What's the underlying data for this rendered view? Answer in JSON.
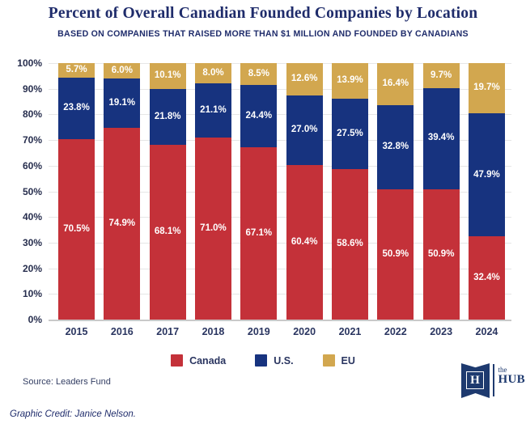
{
  "title": "Percent of Overall Canadian Founded Companies by Location",
  "subtitle": "BASED ON COMPANIES THAT RAISED MORE THAN $1 MILLION AND FOUNDED BY CANADIANS",
  "source": "Source: Leaders Fund",
  "credit": "Graphic Credit: Janice Nelson.",
  "logo": {
    "letter": "H",
    "the": "the",
    "hub": "HUB"
  },
  "colors": {
    "canada": "#C43139",
    "us": "#17337F",
    "eu": "#D2A74F",
    "title_navy": "#1F2C6B",
    "axis_text": "#2A3560",
    "grid": "#E6E6E6",
    "baseline": "#C9C9C9",
    "label_text": "#FFFFFF",
    "logo_navy": "#1E3A6F"
  },
  "legend": [
    {
      "label": "Canada",
      "color": "#C43139"
    },
    {
      "label": "U.S.",
      "color": "#17337F"
    },
    {
      "label": "EU",
      "color": "#D2A74F"
    }
  ],
  "chart_data": {
    "type": "bar",
    "stacked": true,
    "title": "Percent of Overall Canadian Founded Companies by Location",
    "subtitle": "BASED ON COMPANIES THAT RAISED MORE THAN $1 MILLION AND FOUNDED BY CANADIANS",
    "categories": [
      "2015",
      "2016",
      "2017",
      "2018",
      "2019",
      "2020",
      "2021",
      "2022",
      "2023",
      "2024"
    ],
    "series": [
      {
        "name": "Canada",
        "color": "#C43139",
        "values": [
          70.5,
          74.9,
          68.1,
          71.0,
          67.1,
          60.4,
          58.6,
          50.9,
          50.9,
          32.4
        ]
      },
      {
        "name": "U.S.",
        "color": "#17337F",
        "values": [
          23.8,
          19.1,
          21.8,
          21.1,
          24.4,
          27.0,
          27.5,
          32.8,
          39.4,
          47.9
        ]
      },
      {
        "name": "EU",
        "color": "#D2A74F",
        "values": [
          5.7,
          6.0,
          10.1,
          8.0,
          8.5,
          12.6,
          13.9,
          16.4,
          9.7,
          19.7
        ]
      }
    ],
    "yticks": [
      "0%",
      "10%",
      "20%",
      "30%",
      "40%",
      "50%",
      "60%",
      "70%",
      "80%",
      "90%",
      "100%"
    ],
    "ylim": [
      0,
      100
    ],
    "xlabel": "",
    "ylabel": "",
    "grid": true,
    "legend_position": "bottom",
    "value_label_format": "{value}%"
  }
}
